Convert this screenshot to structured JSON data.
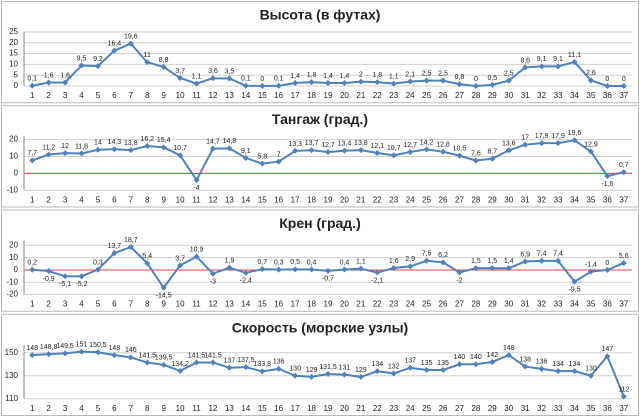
{
  "chart_data": [
    {
      "type": "line",
      "title": "Высота (в футах)",
      "color": "#4f81bd",
      "grid": true,
      "categories": [
        "1",
        "2",
        "3",
        "4",
        "5",
        "6",
        "7",
        "8",
        "9",
        "10",
        "11",
        "12",
        "13",
        "14",
        "15",
        "16",
        "17",
        "18",
        "19",
        "20",
        "21",
        "22",
        "23",
        "24",
        "25",
        "26",
        "27",
        "28",
        "29",
        "30",
        "31",
        "32",
        "33",
        "34",
        "35",
        "36",
        "37"
      ],
      "values": [
        0.1,
        1.6,
        1.6,
        9.5,
        9.2,
        16.4,
        19.6,
        11,
        8.8,
        3.7,
        1.1,
        3.6,
        3.5,
        0.1,
        0,
        0.1,
        1.4,
        1.8,
        1.4,
        1.4,
        2,
        1.8,
        1.1,
        2.1,
        2.5,
        2.5,
        0.8,
        0,
        0.5,
        2.5,
        8.6,
        9.1,
        9.1,
        11.1,
        2.6,
        0,
        0
      ],
      "value_labels": [
        "0,1",
        "1,6",
        "1,6",
        "9,5",
        "9,2",
        "16,4",
        "19,6",
        "11",
        "8,8",
        "3,7",
        "1,1",
        "3,6",
        "3,5",
        "0,1",
        "0",
        "0,1",
        "1,4",
        "1,8",
        "1,4",
        "1,4",
        "2",
        "1,8",
        "1,1",
        "2,1",
        "2,5",
        "2,5",
        "0,8",
        "0",
        "0,5",
        "2,5",
        "8,6",
        "9,1",
        "9,1",
        "11,1",
        "2,6",
        "0",
        "0"
      ],
      "ylim": [
        0,
        25
      ],
      "yticks": [
        0,
        5,
        10,
        15,
        20,
        25
      ]
    },
    {
      "type": "line",
      "title": "Тангаж (град.)",
      "color": "#4f81bd",
      "grid": true,
      "zero_line_color": "#e04040",
      "categories": [
        "1",
        "2",
        "3",
        "4",
        "5",
        "6",
        "7",
        "8",
        "9",
        "10",
        "11",
        "12",
        "13",
        "14",
        "15",
        "16",
        "17",
        "18",
        "19",
        "20",
        "21",
        "22",
        "23",
        "24",
        "25",
        "26",
        "27",
        "28",
        "29",
        "30",
        "31",
        "32",
        "33",
        "34",
        "35",
        "36",
        "37"
      ],
      "values": [
        7.7,
        11.2,
        12,
        11.8,
        14,
        14.3,
        13.8,
        16.2,
        15.4,
        10.7,
        -4,
        14.7,
        14.8,
        9.1,
        5.8,
        7,
        13.3,
        13.7,
        12.7,
        13.4,
        13.8,
        12.1,
        10.7,
        12.7,
        14.2,
        12.8,
        10.5,
        7.6,
        8.7,
        13.6,
        17,
        17.9,
        17.9,
        19.6,
        12.9,
        -1.6,
        0.7
      ],
      "value_labels": [
        "7,7",
        "11,2",
        "12",
        "11,8",
        "14",
        "14,3",
        "13,8",
        "16,2",
        "15,4",
        "10,7",
        "-4",
        "14,7",
        "14,8",
        "9,1",
        "5,8",
        "7",
        "13,3",
        "13,7",
        "12,7",
        "13,4",
        "13,8",
        "12,1",
        "10,7",
        "12,7",
        "14,2",
        "12,8",
        "10,5",
        "7,6",
        "8,7",
        "13,6",
        "17",
        "17,9",
        "17,9",
        "19,6",
        "12,9",
        "-1,6",
        "0,7"
      ],
      "ylim": [
        -10,
        22
      ],
      "yticks": [
        -10,
        0,
        10,
        20
      ]
    },
    {
      "type": "line",
      "title": "Крен (град.)",
      "color": "#4f81bd",
      "grid": true,
      "zero_line_color": "#e04040",
      "categories": [
        "1",
        "2",
        "3",
        "4",
        "5",
        "6",
        "7",
        "8",
        "9",
        "10",
        "11",
        "12",
        "13",
        "14",
        "15",
        "16",
        "17",
        "18",
        "19",
        "20",
        "21",
        "22",
        "23",
        "24",
        "25",
        "26",
        "27",
        "28",
        "29",
        "30",
        "31",
        "32",
        "33",
        "34",
        "35",
        "36",
        "37"
      ],
      "values": [
        0.2,
        -0.9,
        -5.1,
        -5.2,
        0.3,
        13.7,
        18.7,
        5.4,
        -14.5,
        3.7,
        10.9,
        -3,
        1.9,
        -2.4,
        0.7,
        0.3,
        0.5,
        0.4,
        -0.7,
        0.4,
        1.1,
        -2.1,
        1.6,
        2.9,
        7.5,
        6.2,
        -2,
        1.5,
        1.5,
        1.4,
        6.9,
        7.4,
        7.4,
        -9.5,
        -1.4,
        0,
        5.6
      ],
      "value_labels": [
        "0,2",
        "-0,9",
        "-5,1",
        "-5,2",
        "0,3",
        "13,7",
        "18,7",
        "5,4",
        "-14,5",
        "3,7",
        "10,9",
        "-3",
        "1,9",
        "-2,4",
        "0,7",
        "0,3",
        "0,5",
        "0,4",
        "-0,7",
        "0,4",
        "1,1",
        "-2,1",
        "1,6",
        "2,9",
        "7,5",
        "6,2",
        "-2",
        "1,5",
        "1,5",
        "1,4",
        "6,9",
        "7,4",
        "7,4",
        "-9,5",
        "-1,4",
        "0",
        "5,6"
      ],
      "ylim": [
        -20,
        24
      ],
      "yticks": [
        -20,
        -10,
        0,
        10,
        20
      ]
    },
    {
      "type": "line",
      "title": "Скорость (морские узлы)",
      "color": "#4f81bd",
      "grid": true,
      "categories": [
        "1",
        "2",
        "3",
        "4",
        "5",
        "6",
        "7",
        "8",
        "9",
        "10",
        "11",
        "12",
        "13",
        "14",
        "15",
        "16",
        "17",
        "18",
        "19",
        "20",
        "21",
        "22",
        "23",
        "24",
        "25",
        "26",
        "27",
        "28",
        "29",
        "30",
        "31",
        "32",
        "33",
        "34",
        "35",
        "36",
        "37"
      ],
      "values": [
        148,
        148.8,
        149.5,
        151,
        150.5,
        148,
        146,
        141.5,
        139.5,
        134.2,
        141.5,
        141.5,
        137,
        137.5,
        133.8,
        136,
        130,
        129,
        131.5,
        131,
        129,
        134,
        132,
        137,
        135,
        135,
        140,
        140,
        142,
        148,
        138,
        136,
        134,
        134,
        130,
        147,
        112
      ],
      "value_labels": [
        "148",
        "148,8",
        "149,5",
        "151",
        "150,5",
        "148",
        "146",
        "141,5",
        "139,5",
        "134,2",
        "141,5",
        "141,5",
        "137",
        "137,5",
        "133,8",
        "136",
        "130",
        "129",
        "131,5",
        "131",
        "129",
        "134",
        "132",
        "137",
        "135",
        "135",
        "140",
        "140",
        "142",
        "148",
        "138",
        "136",
        "134",
        "134",
        "130",
        "147",
        "112"
      ],
      "ylim": [
        110,
        157
      ],
      "yticks": [
        110,
        130,
        150
      ]
    }
  ]
}
